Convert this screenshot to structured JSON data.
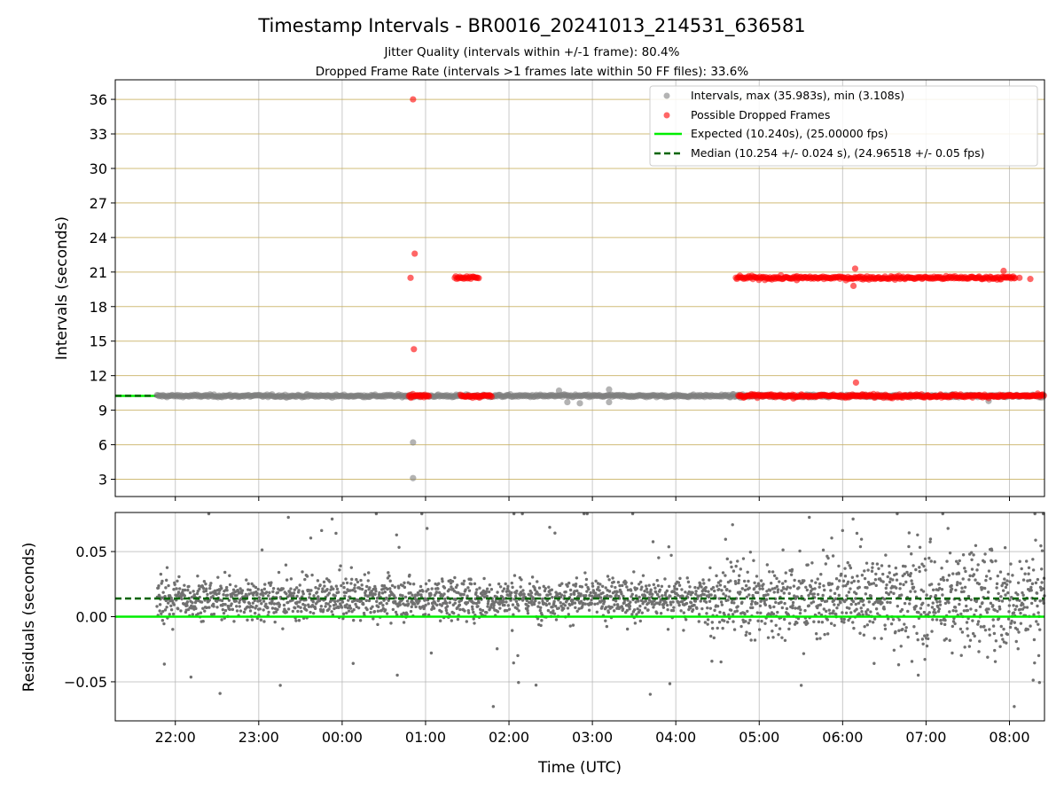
{
  "chart_data": {
    "title": "Timestamp Intervals - BR0016_20241013_214531_636581",
    "subtitles": [
      "Jitter Quality (intervals within +/-1 frame): 80.4%",
      "Dropped Frame Rate (intervals >1 frames late within 50 FF files): 33.6%"
    ],
    "xlabel": "Time (UTC)",
    "x_range_hours": [
      21.28,
      32.42
    ],
    "x_ticks": [
      {
        "h": 22,
        "label": "22:00"
      },
      {
        "h": 23,
        "label": "23:00"
      },
      {
        "h": 24,
        "label": "00:00"
      },
      {
        "h": 25,
        "label": "01:00"
      },
      {
        "h": 26,
        "label": "02:00"
      },
      {
        "h": 27,
        "label": "03:00"
      },
      {
        "h": 28,
        "label": "04:00"
      },
      {
        "h": 29,
        "label": "05:00"
      },
      {
        "h": 30,
        "label": "06:00"
      },
      {
        "h": 31,
        "label": "07:00"
      },
      {
        "h": 32,
        "label": "08:00"
      }
    ],
    "top_panel": {
      "type": "scatter",
      "ylabel": "Intervals (seconds)",
      "ylim": [
        1.5,
        37.7
      ],
      "y_ticks": [
        3,
        6,
        9,
        12,
        15,
        18,
        21,
        24,
        27,
        30,
        33,
        36
      ],
      "grid": true,
      "legend_position": "top-right",
      "legend": [
        {
          "key": "intervals",
          "label": "Intervals, max (35.983s), min (3.108s)",
          "color": "#808080"
        },
        {
          "key": "dropped",
          "label": "Possible Dropped Frames",
          "color": "#ff0000"
        },
        {
          "key": "expected",
          "label": "Expected (10.240s), (25.00000 fps)",
          "color": "#00ee00"
        },
        {
          "key": "median",
          "label": "Median (10.254 +/- 0.024 s), (24.96518 +/- 0.05 fps)",
          "color": "#006400"
        }
      ],
      "expected_value": 10.24,
      "median_value": 10.254,
      "interval_cluster": {
        "start_h": 21.78,
        "end_h": 32.42,
        "center": 10.24
      },
      "interval_outliers": [
        {
          "h": 24.85,
          "v": 6.2
        },
        {
          "h": 24.85,
          "v": 3.1
        },
        {
          "h": 26.6,
          "v": 10.7
        },
        {
          "h": 27.2,
          "v": 10.8
        },
        {
          "h": 26.7,
          "v": 9.7
        },
        {
          "h": 26.85,
          "v": 9.6
        },
        {
          "h": 27.2,
          "v": 9.7
        },
        {
          "h": 31.75,
          "v": 9.8
        }
      ],
      "dropped_segments": [
        {
          "start_h": 24.8,
          "end_h": 25.05,
          "center": 10.24
        },
        {
          "start_h": 25.42,
          "end_h": 25.8,
          "center": 10.24
        },
        {
          "start_h": 28.75,
          "end_h": 32.42,
          "center": 10.24
        },
        {
          "start_h": 25.35,
          "end_h": 25.65,
          "center": 20.5
        },
        {
          "start_h": 28.72,
          "end_h": 32.08,
          "center": 20.5
        }
      ],
      "dropped_outliers": [
        {
          "h": 24.85,
          "v": 36.0
        },
        {
          "h": 24.87,
          "v": 22.6
        },
        {
          "h": 24.82,
          "v": 20.5
        },
        {
          "h": 24.86,
          "v": 14.3
        },
        {
          "h": 30.15,
          "v": 21.3
        },
        {
          "h": 30.13,
          "v": 19.8
        },
        {
          "h": 30.16,
          "v": 11.4
        },
        {
          "h": 31.93,
          "v": 21.1
        },
        {
          "h": 32.12,
          "v": 20.5
        },
        {
          "h": 32.25,
          "v": 20.4
        },
        {
          "h": 29.45,
          "v": 20.3
        }
      ]
    },
    "bottom_panel": {
      "type": "scatter",
      "ylabel": "Residuals (seconds)",
      "ylim": [
        -0.08,
        0.08
      ],
      "y_ticks": [
        {
          "v": -0.05,
          "label": "−0.05"
        },
        {
          "v": 0.0,
          "label": "0.00"
        },
        {
          "v": 0.05,
          "label": "0.05"
        }
      ],
      "expected_value": 0.0,
      "median_value": 0.014,
      "grid": true,
      "point_color": "#707070"
    }
  }
}
